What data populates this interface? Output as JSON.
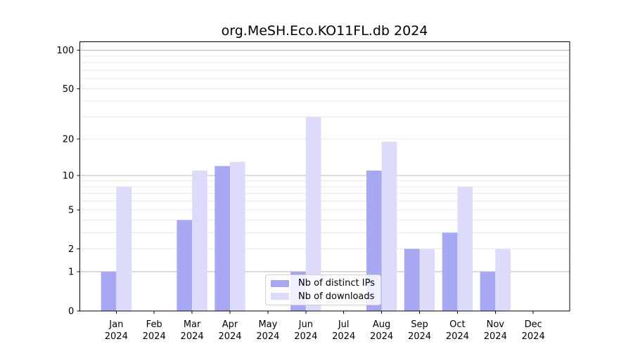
{
  "chart_data": {
    "type": "bar",
    "title": "org.MeSH.Eco.KO11FL.db 2024",
    "categories": [
      "Jan",
      "Feb",
      "Mar",
      "Apr",
      "May",
      "Jun",
      "Jul",
      "Aug",
      "Sep",
      "Oct",
      "Nov",
      "Dec"
    ],
    "year": "2024",
    "series": [
      {
        "name": "Nb of distinct IPs",
        "color": "#a8a8f2",
        "values": [
          1,
          0,
          4,
          12,
          0,
          1,
          0,
          11,
          2,
          3,
          1,
          0
        ]
      },
      {
        "name": "Nb of downloads",
        "color": "#dcdcfa",
        "values": [
          8,
          0,
          11,
          13,
          0,
          30,
          0,
          19,
          2,
          8,
          2,
          0
        ]
      }
    ],
    "yscale": "log1p",
    "ylim": [
      0,
      118
    ],
    "yticks": [
      0,
      1,
      2,
      5,
      10,
      20,
      50,
      100
    ],
    "ytick_labels": [
      "0",
      "1",
      "2",
      "5",
      "10",
      "20",
      "50",
      "100"
    ],
    "major_gridlines": [
      1,
      10,
      100
    ],
    "minor_gridlines": [
      2,
      3,
      4,
      5,
      6,
      7,
      8,
      9,
      20,
      30,
      40,
      50,
      60,
      70,
      80,
      90
    ],
    "grid": true,
    "legend_position": "bottom-center",
    "colors": {
      "background": "#ffffff",
      "spine": "#000000",
      "tick_text": "#000000",
      "major_grid": "#b5b5b5",
      "minor_grid": "#e9e9e9"
    }
  }
}
